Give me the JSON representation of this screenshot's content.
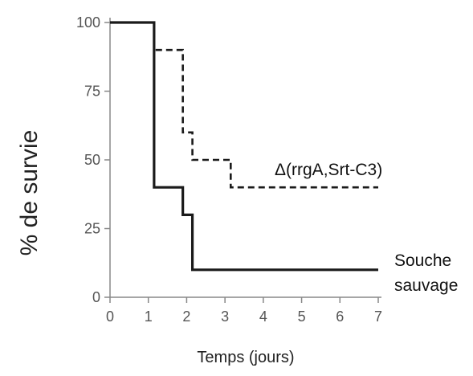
{
  "chart_data": {
    "type": "line",
    "step": true,
    "xlabel": "Temps (jours)",
    "ylabel": "% de survie",
    "xlim": [
      0,
      7
    ],
    "ylim": [
      0,
      100
    ],
    "x_ticks": [
      "0",
      "1",
      "2",
      "3",
      "4",
      "5",
      "6",
      "7"
    ],
    "y_ticks": [
      "0",
      "25",
      "50",
      "75",
      "100"
    ],
    "grid": false,
    "series": [
      {
        "name": "Souche sauvage",
        "name_lines": [
          "Souche",
          "sauvage"
        ],
        "style": "solid",
        "color": "#1a1a1a",
        "x": [
          0,
          1.15,
          1.9,
          2.15,
          7
        ],
        "y": [
          100,
          40,
          30,
          10,
          10
        ]
      },
      {
        "name": "Δ(rrgA,Srt-C3)",
        "style": "dashed",
        "color": "#1a1a1a",
        "x": [
          0,
          1.15,
          1.9,
          2.15,
          3.15,
          7
        ],
        "y": [
          100,
          90,
          60,
          50,
          40,
          40
        ]
      }
    ]
  }
}
